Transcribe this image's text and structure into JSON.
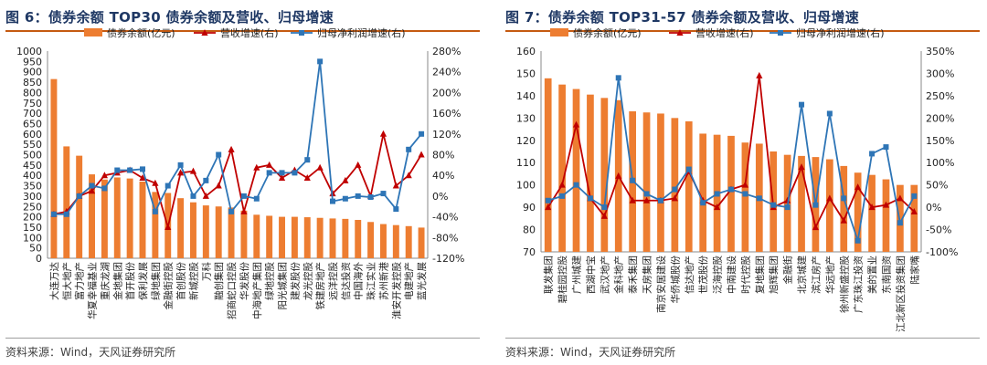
{
  "figures": [
    {
      "title": "图 6：债券余额 TOP30 债券余额及营收、归母增速",
      "source": "资料来源：Wind，天风证券研究所"
    },
    {
      "title": "图 7：债券余额 TOP31-57 债券余额及营收、归母增速",
      "source": "资料来源：Wind，天风证券研究所"
    }
  ],
  "chart_data": [
    {
      "type": "bar",
      "categories": [
        "大连万达",
        "恒大地产",
        "富力地产",
        "华夏幸福基业",
        "重庆龙湖",
        "金地集团",
        "首开股份",
        "保利发展",
        "绿地集团",
        "金融街控股",
        "首创股份",
        "新城控股",
        "万科",
        "融创集团",
        "招商蛇口控股",
        "华发股份",
        "中海地产集团",
        "绿地控股",
        "阳光城集团",
        "建发股份",
        "龙光控股",
        "铁建房地产",
        "远洋控股",
        "信达投资",
        "中国海外",
        "珠江实业",
        "苏州新港",
        "淮安开发控股",
        "电建地产",
        "蓝光发展"
      ],
      "series": [
        {
          "name": "债券余额(亿元)",
          "axis": "left",
          "color": "#ed7d31",
          "values": [
            865,
            540,
            495,
            405,
            380,
            390,
            385,
            370,
            320,
            315,
            290,
            270,
            255,
            250,
            245,
            230,
            210,
            205,
            200,
            200,
            198,
            195,
            192,
            190,
            185,
            175,
            165,
            160,
            155,
            148
          ]
        },
        {
          "name": "营收增速(右)",
          "axis": "right",
          "color": "#c00000",
          "values": [
            -35,
            -30,
            0,
            10,
            40,
            45,
            50,
            35,
            25,
            -60,
            45,
            48,
            0,
            20,
            90,
            -30,
            55,
            60,
            35,
            50,
            35,
            55,
            5,
            30,
            60,
            0,
            120,
            20,
            40,
            80
          ]
        },
        {
          "name": "归母净利润增速(右)",
          "axis": "right",
          "color": "#2e75b6",
          "values": [
            -35,
            -35,
            0,
            20,
            15,
            50,
            50,
            52,
            -30,
            20,
            60,
            0,
            30,
            80,
            -30,
            0,
            -5,
            45,
            45,
            45,
            70,
            260,
            -10,
            -5,
            0,
            -2,
            5,
            -25,
            90,
            120
          ]
        }
      ],
      "ylim": [
        0,
        1000
      ],
      "yticks": [
        0,
        50,
        100,
        150,
        200,
        250,
        300,
        350,
        400,
        450,
        500,
        550,
        600,
        650,
        700,
        750,
        800,
        850,
        900,
        950,
        1000
      ],
      "ylim_right": [
        -120,
        280
      ],
      "yticks_right": [
        "-120%",
        "-80%",
        "-40%",
        "0%",
        "40%",
        "80%",
        "120%",
        "160%",
        "200%",
        "240%",
        "280%"
      ],
      "legend": "top"
    },
    {
      "type": "bar",
      "categories": [
        "联发集团",
        "碧桂园控股",
        "广州城建",
        "西湖中宝",
        "武汉地产",
        "金科地产",
        "泰禾集团",
        "天房集团",
        "南京安居建设",
        "华侨城股份",
        "信达地产",
        "世茂股份",
        "泛海控股",
        "中南建设",
        "时代控股",
        "复地集团",
        "旭辉集团",
        "金融街",
        "北京城建",
        "滨江房产",
        "华远地产",
        "徐州新盛控股",
        "广东珠江投资",
        "美的置业",
        "东南国资",
        "江北新区投资集团",
        "陆家嘴"
      ],
      "series": [
        {
          "name": "债券余额(亿元)",
          "axis": "left",
          "color": "#ed7d31",
          "values": [
            147.8,
            145,
            143,
            140.5,
            139,
            138,
            133,
            132.5,
            132,
            130,
            128.5,
            123,
            122.5,
            122,
            119,
            118.5,
            115,
            113.5,
            113,
            112.5,
            111.5,
            108.5,
            105.5,
            104.5,
            102.5,
            100,
            100
          ]
        },
        {
          "name": "营收增速(右)",
          "axis": "right",
          "color": "#c00000",
          "values": [
            0,
            50,
            185,
            20,
            -20,
            70,
            15,
            15,
            15,
            20,
            80,
            15,
            0,
            40,
            50,
            295,
            0,
            15,
            90,
            -45,
            20,
            -30,
            45,
            0,
            5,
            20,
            -10
          ]
        },
        {
          "name": "归母净利润增速(右)",
          "axis": "right",
          "color": "#2e75b6",
          "values": [
            15,
            25,
            50,
            20,
            0,
            290,
            60,
            30,
            15,
            40,
            85,
            10,
            30,
            40,
            30,
            20,
            5,
            0,
            230,
            5,
            210,
            20,
            -75,
            120,
            135,
            -35,
            25
          ]
        }
      ],
      "ylim": [
        70,
        160
      ],
      "yticks": [
        70,
        80,
        90,
        100,
        110,
        120,
        130,
        140,
        150,
        160
      ],
      "ylim_right": [
        -100,
        350
      ],
      "yticks_right": [
        "-100%",
        "-50%",
        "0%",
        "50%",
        "100%",
        "150%",
        "200%",
        "250%",
        "300%",
        "350%"
      ],
      "legend": "top"
    }
  ]
}
